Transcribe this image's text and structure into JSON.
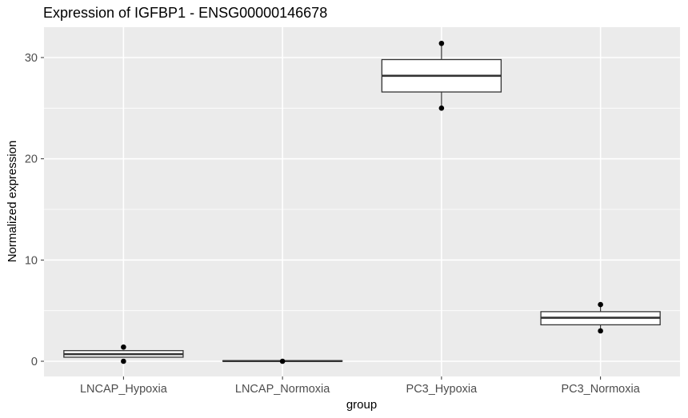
{
  "chart_data": {
    "type": "box",
    "title": "Expression of IGFBP1 - ENSG00000146678",
    "xlabel": "group",
    "ylabel": "Normalized expression",
    "categories": [
      "LNCAP_Hypoxia",
      "LNCAP_Normoxia",
      "PC3_Hypoxia",
      "PC3_Normoxia"
    ],
    "ylim": [
      -1.5,
      33.0
    ],
    "y_ticks": [
      0,
      10,
      20,
      30
    ],
    "grid": true,
    "legend": "none",
    "boxes": [
      {
        "category": "LNCAP_Hypoxia",
        "q1": 0.4,
        "median": 0.7,
        "q3": 1.05,
        "whisker_low": 0.4,
        "whisker_high": 1.05,
        "points": [
          0.0,
          1.4
        ]
      },
      {
        "category": "LNCAP_Normoxia",
        "q1": 0.0,
        "median": 0.02,
        "q3": 0.05,
        "whisker_low": 0.0,
        "whisker_high": 0.05,
        "points": [
          0.0
        ]
      },
      {
        "category": "PC3_Hypoxia",
        "q1": 26.6,
        "median": 28.2,
        "q3": 29.8,
        "whisker_low": 25.0,
        "whisker_high": 31.4,
        "points": [
          25.0,
          31.4
        ]
      },
      {
        "category": "PC3_Normoxia",
        "q1": 3.6,
        "median": 4.3,
        "q3": 4.9,
        "whisker_low": 3.0,
        "whisker_high": 5.6,
        "points": [
          3.0,
          5.6
        ]
      }
    ],
    "colors": {
      "panel": "#ebebeb",
      "grid": "#ffffff",
      "box_fill": "#ffffff",
      "box_line": "#333333",
      "point": "#000000"
    }
  }
}
